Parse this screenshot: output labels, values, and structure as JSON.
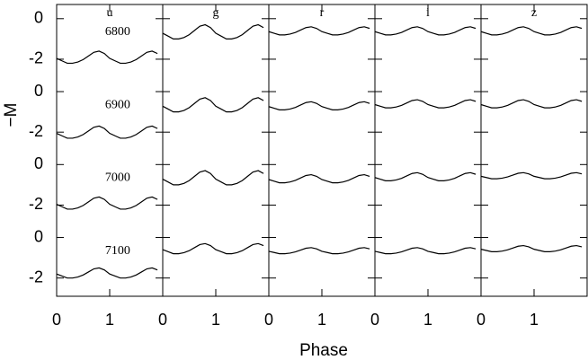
{
  "chart_data": {
    "type": "line",
    "xlabel": "Phase",
    "ylabel": "−M",
    "xlim": [
      0,
      2
    ],
    "xticks": [
      0,
      1
    ],
    "ylim": [
      -2.9,
      0.7
    ],
    "yticks": [
      0,
      -2
    ],
    "x": [
      0,
      0.1,
      0.2,
      0.3,
      0.4,
      0.5,
      0.6,
      0.7,
      0.8,
      0.9,
      1,
      1.1,
      1.2,
      1.3,
      1.4,
      1.5,
      1.6,
      1.7,
      1.8,
      1.9
    ],
    "panels": [
      {
        "title": "u",
        "series": [
          {
            "name": "6800",
            "values": [
              -1.96,
              -2.08,
              -2.2,
              -2.2,
              -2.14,
              -2.02,
              -1.84,
              -1.66,
              -1.6,
              -1.72,
              -1.96,
              -2.08,
              -2.2,
              -2.2,
              -2.14,
              -2.02,
              -1.84,
              -1.66,
              -1.6,
              -1.72
            ]
          },
          {
            "name": "6900",
            "values": [
              -2.06,
              -2.18,
              -2.3,
              -2.3,
              -2.24,
              -2.12,
              -1.94,
              -1.76,
              -1.7,
              -1.82,
              -2.06,
              -2.18,
              -2.3,
              -2.3,
              -2.24,
              -2.12,
              -1.94,
              -1.76,
              -1.7,
              -1.82
            ]
          },
          {
            "name": "7000",
            "values": [
              -1.96,
              -2.08,
              -2.2,
              -2.2,
              -2.14,
              -2.02,
              -1.84,
              -1.66,
              -1.6,
              -1.72,
              -1.96,
              -2.08,
              -2.2,
              -2.2,
              -2.14,
              -2.02,
              -1.84,
              -1.66,
              -1.6,
              -1.72
            ]
          },
          {
            "name": "7100",
            "values": [
              -1.8,
              -1.9,
              -2,
              -2,
              -1.95,
              -1.85,
              -1.7,
              -1.55,
              -1.5,
              -1.6,
              -1.8,
              -1.9,
              -2,
              -2,
              -1.95,
              -1.85,
              -1.7,
              -1.55,
              -1.5,
              -1.6
            ]
          }
        ]
      },
      {
        "title": "g",
        "series": [
          {
            "values": [
              -0.72,
              -0.86,
              -1,
              -1,
              -0.93,
              -0.79,
              -0.58,
              -0.37,
              -0.3,
              -0.44,
              -0.72,
              -0.86,
              -1,
              -1,
              -0.93,
              -0.79,
              -0.58,
              -0.37,
              -0.3,
              -0.44
            ]
          },
          {
            "values": [
              -0.72,
              -0.86,
              -1,
              -1,
              -0.93,
              -0.79,
              -0.58,
              -0.37,
              -0.3,
              -0.44,
              -0.72,
              -0.86,
              -1,
              -1,
              -0.93,
              -0.79,
              -0.58,
              -0.37,
              -0.3,
              -0.44
            ]
          },
          {
            "values": [
              -0.72,
              -0.86,
              -1,
              -1,
              -0.93,
              -0.79,
              -0.58,
              -0.37,
              -0.3,
              -0.44,
              -0.72,
              -0.86,
              -1,
              -1,
              -0.93,
              -0.79,
              -0.58,
              -0.37,
              -0.3,
              -0.44
            ]
          },
          {
            "values": [
              -0.6,
              -0.7,
              -0.8,
              -0.8,
              -0.75,
              -0.65,
              -0.5,
              -0.35,
              -0.3,
              -0.4,
              -0.6,
              -0.7,
              -0.8,
              -0.8,
              -0.75,
              -0.65,
              -0.5,
              -0.35,
              -0.3,
              -0.4
            ]
          }
        ]
      },
      {
        "title": "r",
        "series": [
          {
            "values": [
              -0.64,
              -0.72,
              -0.8,
              -0.8,
              -0.76,
              -0.68,
              -0.56,
              -0.44,
              -0.4,
              -0.48,
              -0.64,
              -0.72,
              -0.8,
              -0.8,
              -0.76,
              -0.68,
              -0.56,
              -0.44,
              -0.4,
              -0.48
            ]
          },
          {
            "values": [
              -0.74,
              -0.82,
              -0.9,
              -0.9,
              -0.86,
              -0.78,
              -0.66,
              -0.54,
              -0.5,
              -0.58,
              -0.74,
              -0.82,
              -0.9,
              -0.9,
              -0.86,
              -0.78,
              -0.66,
              -0.54,
              -0.5,
              -0.58
            ]
          },
          {
            "values": [
              -0.74,
              -0.82,
              -0.9,
              -0.9,
              -0.86,
              -0.78,
              -0.66,
              -0.54,
              -0.5,
              -0.58,
              -0.74,
              -0.82,
              -0.9,
              -0.9,
              -0.86,
              -0.78,
              -0.66,
              -0.54,
              -0.5,
              -0.58
            ]
          },
          {
            "values": [
              -0.68,
              -0.74,
              -0.8,
              -0.8,
              -0.77,
              -0.71,
              -0.62,
              -0.53,
              -0.5,
              -0.56,
              -0.68,
              -0.74,
              -0.8,
              -0.8,
              -0.77,
              -0.71,
              -0.62,
              -0.53,
              -0.5,
              -0.56
            ]
          }
        ]
      },
      {
        "title": "i",
        "series": [
          {
            "values": [
              -0.64,
              -0.72,
              -0.8,
              -0.8,
              -0.76,
              -0.68,
              -0.56,
              -0.44,
              -0.4,
              -0.48,
              -0.64,
              -0.72,
              -0.8,
              -0.8,
              -0.76,
              -0.68,
              -0.56,
              -0.44,
              -0.4,
              -0.48
            ]
          },
          {
            "values": [
              -0.64,
              -0.72,
              -0.8,
              -0.8,
              -0.76,
              -0.68,
              -0.56,
              -0.44,
              -0.4,
              -0.48,
              -0.64,
              -0.72,
              -0.8,
              -0.8,
              -0.76,
              -0.68,
              -0.56,
              -0.44,
              -0.4,
              -0.48
            ]
          },
          {
            "values": [
              -0.64,
              -0.72,
              -0.8,
              -0.8,
              -0.76,
              -0.68,
              -0.56,
              -0.44,
              -0.4,
              -0.48,
              -0.64,
              -0.72,
              -0.8,
              -0.8,
              -0.76,
              -0.68,
              -0.56,
              -0.44,
              -0.4,
              -0.48
            ]
          },
          {
            "values": [
              -0.68,
              -0.74,
              -0.8,
              -0.8,
              -0.77,
              -0.71,
              -0.62,
              -0.53,
              -0.5,
              -0.56,
              -0.68,
              -0.74,
              -0.8,
              -0.8,
              -0.77,
              -0.71,
              -0.62,
              -0.53,
              -0.5,
              -0.56
            ]
          }
        ]
      },
      {
        "title": "z",
        "series": [
          {
            "values": [
              -0.64,
              -0.72,
              -0.8,
              -0.8,
              -0.76,
              -0.68,
              -0.56,
              -0.44,
              -0.4,
              -0.48,
              -0.64,
              -0.72,
              -0.8,
              -0.8,
              -0.76,
              -0.68,
              -0.56,
              -0.44,
              -0.4,
              -0.48
            ]
          },
          {
            "values": [
              -0.64,
              -0.72,
              -0.8,
              -0.8,
              -0.76,
              -0.68,
              -0.56,
              -0.44,
              -0.4,
              -0.48,
              -0.64,
              -0.72,
              -0.8,
              -0.8,
              -0.76,
              -0.68,
              -0.56,
              -0.44,
              -0.4,
              -0.48
            ]
          },
          {
            "values": [
              -0.58,
              -0.64,
              -0.7,
              -0.7,
              -0.67,
              -0.61,
              -0.52,
              -0.43,
              -0.4,
              -0.46,
              -0.58,
              -0.64,
              -0.7,
              -0.7,
              -0.67,
              -0.61,
              -0.52,
              -0.43,
              -0.4,
              -0.46
            ]
          },
          {
            "values": [
              -0.58,
              -0.64,
              -0.7,
              -0.7,
              -0.67,
              -0.61,
              -0.52,
              -0.43,
              -0.4,
              -0.46,
              -0.58,
              -0.64,
              -0.7,
              -0.7,
              -0.67,
              -0.61,
              -0.52,
              -0.43,
              -0.4,
              -0.46
            ]
          }
        ]
      }
    ]
  }
}
